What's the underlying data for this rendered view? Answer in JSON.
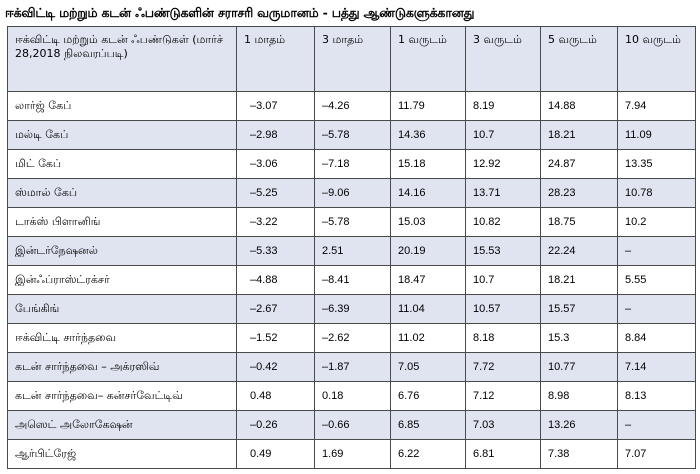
{
  "title": "ஈக்விட்டி மற்றும் கடன் ஃபண்டுகளின் சராசரி வருமானம் - பத்து ஆண்டுகளுக்கானது",
  "table": {
    "headers": [
      "ஈக்விட்டி மற்றும் கடன் ஃபண்டுகள் (மார்ச் 28,2018 நிலவரப்படி)",
      "1 மாதம்",
      "3 மாதம்",
      "1 வருடம்",
      "3 வருடம்",
      "5 வருடம்",
      "10 வருடம்"
    ],
    "rows": [
      {
        "name": "லார்ஜ் கேப்",
        "values": [
          "–3.07",
          "–4.26",
          "11.79",
          "8.19",
          "14.88",
          "7.94"
        ]
      },
      {
        "name": "மல்டி கேப்",
        "values": [
          "–2.98",
          "–5.78",
          "14.36",
          "10.7",
          "18.21",
          "11.09"
        ]
      },
      {
        "name": "மிட் கேப்",
        "values": [
          "–3.06",
          "–7.18",
          "15.18",
          "12.92",
          "24.87",
          "13.35"
        ]
      },
      {
        "name": "ஸ்மால் கேப்",
        "values": [
          "–5.25",
          "–9.06",
          "14.16",
          "13.71",
          "28.23",
          "10.78"
        ]
      },
      {
        "name": "டாக்ஸ் பிளானிங்",
        "values": [
          "–3.22",
          "–5.78",
          "15.03",
          "10.82",
          "18.75",
          "10.2"
        ]
      },
      {
        "name": "இன்டர்நேஷனல்",
        "values": [
          "–5.33",
          "2.51",
          "20.19",
          "15.53",
          "22.24",
          "–"
        ]
      },
      {
        "name": "இன்ஃப்ராஸ்ட்ரக்சர்",
        "values": [
          "–4.88",
          "–8.41",
          "18.47",
          "10.7",
          "18.21",
          "5.55"
        ]
      },
      {
        "name": "பேங்கிங்",
        "values": [
          "–2.67",
          "–6.39",
          "11.04",
          "10.57",
          "15.57",
          "–"
        ]
      },
      {
        "name": "ஈக்விட்டி சார்ந்தவை",
        "values": [
          "–1.52",
          "–2.62",
          "11.02",
          "8.18",
          "15.3",
          "8.84"
        ]
      },
      {
        "name": "கடன் சார்ந்தவை – அக்ரஸிவ்",
        "values": [
          "–0.42",
          "–1.87",
          "7.05",
          "7.72",
          "10.77",
          "7.14"
        ]
      },
      {
        "name": "கடன் சார்ந்தவை– கன்சர்வேட்டிவ்",
        "values": [
          "0.48",
          "0.18",
          "6.76",
          "7.12",
          "8.98",
          "8.13"
        ]
      },
      {
        "name": "அஸெட் அலோகேஷன்",
        "values": [
          "–0.26",
          "–0.66",
          "6.85",
          "7.03",
          "13.26",
          "–"
        ]
      },
      {
        "name": "ஆர்பிட்ரேஜ்",
        "values": [
          "0.49",
          "1.69",
          "6.22",
          "6.81",
          "7.38",
          "7.07"
        ]
      }
    ]
  }
}
